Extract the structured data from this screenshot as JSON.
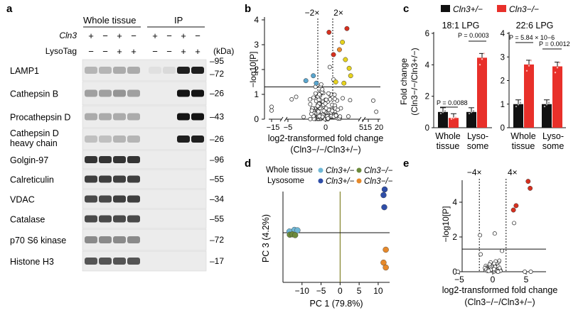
{
  "panel_a": {
    "letter": "a",
    "group_whole": "Whole tissue",
    "group_ip": "IP",
    "row_cln3": "Cln3",
    "row_lysotag": "LysoTag",
    "cln3_signs": [
      "+",
      "−",
      "+",
      "−",
      "+",
      "−",
      "+",
      "−"
    ],
    "lysotag_signs": [
      "−",
      "−",
      "+",
      "+",
      "−",
      "−",
      "+",
      "+"
    ],
    "kda_label": "(kDa)",
    "blots": [
      {
        "label": "LAMP1",
        "markers": [
          "95",
          "72"
        ]
      },
      {
        "label": "Cathepsin B",
        "markers": [
          "26"
        ]
      },
      {
        "label": "Procathepsin D",
        "markers": [
          "43"
        ]
      },
      {
        "label": "Cathepsin D heavy chain",
        "label_line1": "Cathepsin D",
        "label_line2": "heavy chain",
        "markers": [
          "26"
        ]
      },
      {
        "label": "Golgin-97",
        "markers": [
          "96"
        ]
      },
      {
        "label": "Calreticulin",
        "markers": [
          "55"
        ]
      },
      {
        "label": "VDAC",
        "markers": [
          "34"
        ]
      },
      {
        "label": "Catalase",
        "markers": [
          "55"
        ]
      },
      {
        "label": "p70 S6 kinase",
        "markers": [
          "72"
        ]
      },
      {
        "label": "Histone H3",
        "markers": [
          "17"
        ]
      }
    ]
  },
  "panel_b": {
    "letter": "b",
    "thr_left": "−2×",
    "thr_right": "2×",
    "ylabel": "−log10[P]",
    "xlabel": "log2-transformed fold change",
    "xlabel2": "(Cln3−/−/Cln3+/−)",
    "colors": {
      "blue": "#5aa6cf",
      "red": "#d7301f",
      "orange": "#ee8a2a",
      "yellow": "#e6d21e"
    },
    "chart_data": {
      "type": "scatter",
      "xlim": [
        -15,
        20
      ],
      "ylim": [
        0,
        4
      ],
      "x_ticks": [
        "−15",
        "−5",
        "0",
        "5",
        "15",
        "20"
      ],
      "y_ticks": [
        "0",
        "1",
        "2",
        "3",
        "4"
      ],
      "axis_break": true,
      "threshold_fc_log2": [
        -1,
        1
      ],
      "threshold_y": 1.3,
      "highlighted": [
        {
          "x": 0.5,
          "y": 3.5,
          "color": "red"
        },
        {
          "x": 1.1,
          "y": 2.6,
          "color": "red"
        },
        {
          "x": 2.9,
          "y": 3.65,
          "color": "red"
        },
        {
          "x": 1.9,
          "y": 2.8,
          "color": "orange"
        },
        {
          "x": 2.3,
          "y": 3.1,
          "color": "yellow"
        },
        {
          "x": 2.7,
          "y": 2.4,
          "color": "yellow"
        },
        {
          "x": 3.2,
          "y": 2.05,
          "color": "yellow"
        },
        {
          "x": 3.4,
          "y": 1.75,
          "color": "yellow"
        },
        {
          "x": 1.4,
          "y": 1.5,
          "color": "yellow"
        },
        {
          "x": 2.5,
          "y": 1.45,
          "color": "yellow"
        },
        {
          "x": -2.6,
          "y": 1.55,
          "color": "blue"
        },
        {
          "x": -1.6,
          "y": 1.75,
          "color": "blue"
        },
        {
          "x": -1.2,
          "y": 1.45,
          "color": "blue"
        }
      ]
    }
  },
  "panel_c": {
    "letter": "c",
    "legend": [
      {
        "label": "Cln3+/−",
        "color": "#111111"
      },
      {
        "label": "Cln3−/−",
        "color": "#e8302a"
      }
    ],
    "ylabel_line1": "Fold change",
    "ylabel_line2": "(Cln3−/−/Cln3+/−)",
    "subplots": [
      {
        "title": "18:1 LPG",
        "ylim": [
          0,
          6
        ],
        "yticks": [
          "0",
          "2",
          "4",
          "6"
        ],
        "groups": [
          "Whole tissue",
          "Lyso-some"
        ],
        "bars": [
          {
            "group": "Whole tissue",
            "het": 1.0,
            "ko": 0.62
          },
          {
            "group": "Lysosome",
            "het": 1.0,
            "ko": 4.45
          }
        ],
        "pvalues": [
          "P = 0.0088",
          "P = 0.0003"
        ]
      },
      {
        "title": "22:6 LPG",
        "ylim": [
          0,
          4
        ],
        "yticks": [
          "0",
          "1",
          "2",
          "3",
          "4"
        ],
        "groups": [
          "Whole tissue",
          "Lyso-some"
        ],
        "bars": [
          {
            "group": "Whole tissue",
            "het": 1.0,
            "ko": 2.68
          },
          {
            "group": "Lysosome",
            "het": 1.0,
            "ko": 2.6
          }
        ],
        "pvalues": [
          "P = 5.84 × 10−6",
          "P = 0.0012"
        ]
      }
    ],
    "chart_data": {
      "type": "bar",
      "categories": [
        "Whole tissue",
        "Lysosome"
      ],
      "series": [
        {
          "name": "Cln3+/− (18:1 LPG)",
          "values": [
            1.0,
            1.0
          ]
        },
        {
          "name": "Cln3−/− (18:1 LPG)",
          "values": [
            0.62,
            4.45
          ]
        },
        {
          "name": "Cln3+/− (22:6 LPG)",
          "values": [
            1.0,
            1.0
          ]
        },
        {
          "name": "Cln3−/− (22:6 LPG)",
          "values": [
            2.68,
            2.6
          ]
        }
      ]
    }
  },
  "panel_d": {
    "letter": "d",
    "legend_whole": "Whole tissue",
    "legend_lyso": "Lysosome",
    "legend_het": "Cln3+/−",
    "legend_ko": "Cln3−/−",
    "colors": {
      "whole_het": "#6fb7d6",
      "whole_ko": "#6c8a3c",
      "lyso_het": "#2f4ea8",
      "lyso_ko": "#e6892b"
    },
    "xlabel": "PC 1 (79.8%)",
    "ylabel": "PC 3 (4.2%)",
    "chart_data": {
      "type": "scatter",
      "xlim": [
        -15,
        13
      ],
      "ylim": [
        -1,
        1.2
      ],
      "x_ticks": [
        "−10",
        "−5",
        "0",
        "5",
        "10"
      ],
      "points": [
        {
          "group": "whole_het",
          "x": -13.3,
          "y": 0.03
        },
        {
          "group": "whole_het",
          "x": -12.0,
          "y": 0.07
        },
        {
          "group": "whole_het",
          "x": -11.2,
          "y": 0.06
        },
        {
          "group": "whole_ko",
          "x": -13.2,
          "y": -0.05
        },
        {
          "group": "whole_ko",
          "x": -12.5,
          "y": -0.04
        },
        {
          "group": "whole_ko",
          "x": -11.8,
          "y": -0.06
        },
        {
          "group": "lyso_het",
          "x": 11.7,
          "y": 1.07
        },
        {
          "group": "lyso_het",
          "x": 11.4,
          "y": 0.93
        },
        {
          "group": "lyso_het",
          "x": 11.6,
          "y": 0.63
        },
        {
          "group": "lyso_ko",
          "x": 12.0,
          "y": -0.42
        },
        {
          "group": "lyso_ko",
          "x": 11.4,
          "y": -0.74
        },
        {
          "group": "lyso_ko",
          "x": 12.0,
          "y": -0.86
        }
      ]
    }
  },
  "panel_e": {
    "letter": "e",
    "thr_left": "−4×",
    "thr_right": "4×",
    "ylabel": "−log10[P]",
    "xlabel": "log2-transformed fold change",
    "xlabel2": "(Cln3−/−/Cln3+/−)",
    "colors": {
      "red": "#d7301f"
    },
    "chart_data": {
      "type": "scatter",
      "xlim": [
        -10,
        7
      ],
      "ylim": [
        0,
        6
      ],
      "x_ticks": [
        "−5",
        "0",
        "5"
      ],
      "y_ticks": [
        "0",
        "2",
        "4"
      ],
      "threshold_fc_log2": [
        -2,
        2
      ],
      "threshold_y": 1.3,
      "highlighted": [
        {
          "x": 5.3,
          "y": 5.2
        },
        {
          "x": 5.6,
          "y": 4.8
        },
        {
          "x": 3.1,
          "y": 3.55
        },
        {
          "x": 3.5,
          "y": 3.8
        }
      ],
      "other": [
        {
          "x": -5.2,
          "y": 0.0
        },
        {
          "x": -1.9,
          "y": 2.1
        },
        {
          "x": -1.8,
          "y": 1.0
        },
        {
          "x": 0.3,
          "y": 2.2
        },
        {
          "x": 1.4,
          "y": 1.2
        },
        {
          "x": 3.2,
          "y": 2.8
        },
        {
          "x": 4.8,
          "y": 0.0
        },
        {
          "x": 5.7,
          "y": 0.0
        },
        {
          "x": 0.8,
          "y": 0.0
        },
        {
          "x": -0.3,
          "y": 0.1
        },
        {
          "x": 0.2,
          "y": 0.15
        },
        {
          "x": -0.6,
          "y": 0.05
        }
      ]
    }
  }
}
